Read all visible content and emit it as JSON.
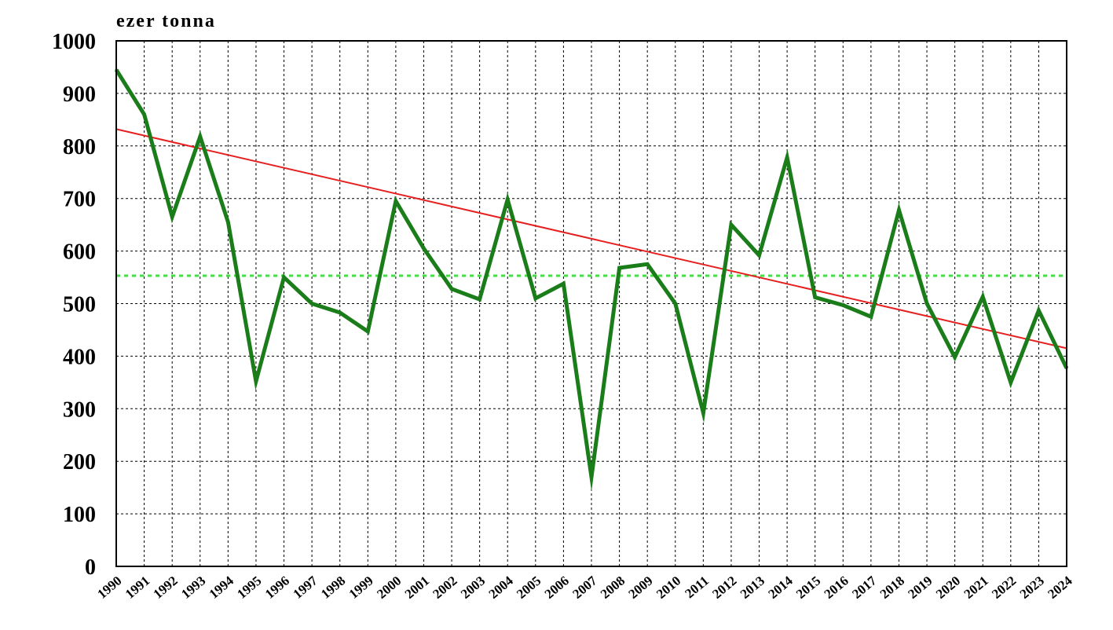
{
  "chart_data": {
    "type": "line",
    "unit_label": "ezer tonna",
    "x": [
      1990,
      1991,
      1992,
      1993,
      1994,
      1995,
      1996,
      1997,
      1998,
      1999,
      2000,
      2001,
      2002,
      2003,
      2004,
      2005,
      2006,
      2007,
      2008,
      2009,
      2010,
      2011,
      2012,
      2013,
      2014,
      2015,
      2016,
      2017,
      2018,
      2019,
      2020,
      2021,
      2022,
      2023,
      2024
    ],
    "x_tick_labels": [
      "1990",
      "1991",
      "1992",
      "1993",
      "1994",
      "1995",
      "1996",
      "1997",
      "1998",
      "1999",
      "2000",
      "2001",
      "2002",
      "2003",
      "2004",
      "2005",
      "2006",
      "2007",
      "2008",
      "2009",
      "2010",
      "2011",
      "2012",
      "2013",
      "2014",
      "2015",
      "2016",
      "2017",
      "2018",
      "2019",
      "2020",
      "2021",
      "2022",
      "2023",
      "2024"
    ],
    "y_tick_values": [
      0,
      100,
      200,
      300,
      400,
      500,
      600,
      700,
      800,
      900,
      1000
    ],
    "y_tick_labels": [
      "0",
      "100",
      "200",
      "300",
      "400",
      "500",
      "600",
      "700",
      "800",
      "900",
      "1000"
    ],
    "ylim": [
      0,
      1000
    ],
    "xlim": [
      1990,
      2024
    ],
    "grid": true,
    "series": [
      {
        "kind": "data",
        "color": "#1a7d1a",
        "values": [
          945,
          860,
          665,
          818,
          655,
          352,
          550,
          500,
          483,
          447,
          695,
          605,
          528,
          508,
          698,
          510,
          538,
          170,
          568,
          575,
          500,
          292,
          650,
          592,
          778,
          512,
          497,
          475,
          678,
          500,
          398,
          513,
          350,
          487,
          377
        ]
      },
      {
        "kind": "trend",
        "color": "#e62020",
        "x": [
          1990,
          2024
        ],
        "values": [
          832,
          415
        ]
      },
      {
        "kind": "average",
        "color": "#44dd44",
        "x": [
          1990,
          2024
        ],
        "values": [
          553,
          553
        ]
      }
    ]
  }
}
